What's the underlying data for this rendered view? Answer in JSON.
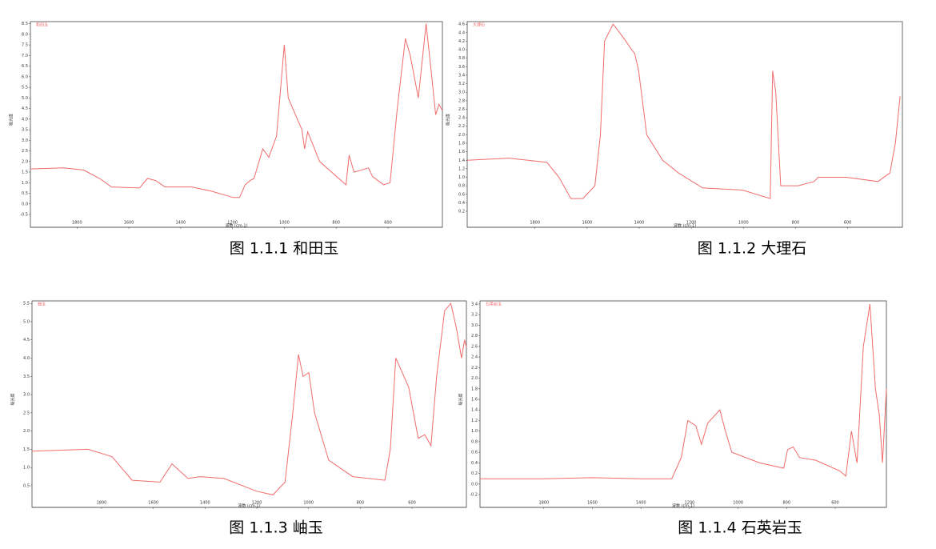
{
  "chart_data": [
    {
      "type": "line",
      "caption": "图 1.1.1  和田玉",
      "label": "和田玉",
      "xlabel": "波数 (cm-1)",
      "ylabel": "吸光度",
      "xlim": [
        1980,
        390
      ],
      "xticks": [
        1800,
        1600,
        1400,
        1200,
        1000,
        800,
        600
      ],
      "ylim": [
        -0.65,
        8.6
      ],
      "yticks": [
        -0.5,
        {
          "value": 0,
          "label": "0.0"
        },
        0.5,
        {
          "value": 1,
          "label": "1.0"
        },
        1.5,
        {
          "value": 2,
          "label": "2.0"
        },
        2.5,
        {
          "value": 3,
          "label": "3.0"
        },
        3.5,
        {
          "value": 4,
          "label": "4.0"
        },
        4.5,
        {
          "value": 5,
          "label": "5.0"
        },
        5.5,
        {
          "value": 6,
          "label": "6.0"
        },
        6.5,
        {
          "value": 7,
          "label": "7.0"
        },
        7.5,
        {
          "value": 8,
          "label": "8.0"
        },
        8.5
      ],
      "series": [
        {
          "color": "#f26b6b",
          "x": [
            1980,
            1853,
            1775,
            1713,
            1667,
            1559,
            1528,
            1497,
            1460,
            1358,
            1281,
            1197,
            1173,
            1151,
            1132,
            1117,
            1083,
            1060,
            1030,
            1000,
            985,
            932,
            922,
            910,
            864,
            762,
            750,
            731,
            675,
            660,
            617,
            592,
            564,
            533,
            514,
            483,
            453,
            431,
            416,
            403,
            390
          ],
          "values": [
            1.65,
            1.7,
            1.6,
            1.2,
            0.8,
            0.75,
            1.2,
            1.1,
            0.8,
            0.8,
            0.6,
            0.3,
            0.3,
            0.9,
            1.1,
            1.2,
            2.6,
            2.2,
            3.2,
            7.5,
            5.0,
            3.5,
            2.6,
            3.4,
            2.0,
            0.9,
            2.3,
            1.5,
            1.7,
            1.3,
            0.9,
            1.0,
            4.5,
            7.8,
            7.0,
            5.0,
            8.5,
            6.0,
            4.2,
            4.7,
            4.4
          ]
        }
      ]
    },
    {
      "type": "line",
      "caption": "图 1.1.2 大理石",
      "label": "大理石",
      "xlabel": "波数 (cm-1)",
      "ylabel": "吸光度",
      "xlim": [
        2060,
        390
      ],
      "xticks": [
        1800,
        1600,
        1400,
        1200,
        1000,
        800,
        600
      ],
      "ylim": [
        0.05,
        4.66
      ],
      "yticks": [
        0.2,
        0.4,
        0.6,
        0.8,
        {
          "value": 1,
          "label": "1.0"
        },
        1.2,
        1.4,
        1.6,
        1.8,
        {
          "value": 2,
          "label": "2.0"
        },
        2.2,
        2.4,
        2.6,
        2.8,
        {
          "value": 3,
          "label": "3.0"
        },
        3.2,
        3.4,
        3.6,
        3.8,
        {
          "value": 4,
          "label": "4.0"
        },
        4.2,
        4.4,
        4.6
      ],
      "series": [
        {
          "color": "#f26b6b",
          "x": [
            2060,
            1900,
            1754,
            1708,
            1662,
            1616,
            1570,
            1549,
            1533,
            1500,
            1463,
            1417,
            1402,
            1371,
            1310,
            1249,
            1157,
            1004,
            897,
            888,
            876,
            857,
            790,
            729,
            713,
            606,
            484,
            438,
            417,
            399
          ],
          "values": [
            1.4,
            1.45,
            1.35,
            1.0,
            0.5,
            0.5,
            0.8,
            2.0,
            4.2,
            4.6,
            4.3,
            3.9,
            3.5,
            2.0,
            1.4,
            1.1,
            0.75,
            0.7,
            0.5,
            3.5,
            3.0,
            0.8,
            0.8,
            0.9,
            1.0,
            1.0,
            0.9,
            1.1,
            1.8,
            2.9
          ]
        }
      ]
    },
    {
      "type": "line",
      "caption": "图 1.1.3  岫玉",
      "label": "岫玉",
      "xlabel": "波数 (cm-1)",
      "ylabel": "吸光度",
      "xlim": [
        2069,
        390
      ],
      "xticks": [
        1800,
        1600,
        1400,
        1200,
        1000,
        800,
        600
      ],
      "ylim": [
        0.17,
        5.57
      ],
      "yticks": [
        0.5,
        {
          "value": 1,
          "label": "1.0"
        },
        1.5,
        {
          "value": 2,
          "label": "2.0"
        },
        2.5,
        {
          "value": 3,
          "label": "3.0"
        },
        3.5,
        {
          "value": 4,
          "label": "4.0"
        },
        4.5,
        {
          "value": 5,
          "label": "5.0"
        },
        5.5
      ],
      "series": [
        {
          "color": "#f26b6b",
          "x": [
            2069,
            1853,
            1760,
            1682,
            1574,
            1528,
            1466,
            1419,
            1327,
            1200,
            1138,
            1091,
            1061,
            1039,
            1021,
            999,
            977,
            922,
            829,
            705,
            684,
            663,
            644,
            613,
            576,
            551,
            527,
            505,
            474,
            450,
            428,
            409,
            397,
            390
          ],
          "values": [
            1.45,
            1.5,
            1.3,
            0.65,
            0.6,
            1.1,
            0.7,
            0.75,
            0.7,
            0.35,
            0.25,
            0.6,
            2.5,
            4.1,
            3.5,
            3.6,
            2.5,
            1.2,
            0.75,
            0.65,
            1.5,
            4.0,
            3.7,
            3.2,
            1.8,
            1.9,
            1.6,
            3.5,
            5.3,
            5.5,
            4.8,
            4.0,
            4.5,
            4.3
          ]
        }
      ]
    },
    {
      "type": "line",
      "caption": "图 1.1.4 石英岩玉",
      "label": "石英岩玉",
      "xlabel": "波数 (cm-1)",
      "ylabel": "吸光度",
      "xlim": [
        2063,
        389
      ],
      "xticks": [
        1800,
        1600,
        1400,
        1200,
        1000,
        800,
        600
      ],
      "ylim": [
        -0.26,
        3.46
      ],
      "yticks": [
        -0.2,
        {
          "value": 0,
          "label": "0.0"
        },
        0.2,
        0.4,
        0.6,
        0.8,
        {
          "value": 1,
          "label": "1.0"
        },
        1.2,
        1.4,
        1.6,
        1.8,
        {
          "value": 2,
          "label": "2.0"
        },
        2.2,
        2.4,
        2.6,
        2.8,
        {
          "value": 3,
          "label": "3.0"
        },
        3.2,
        3.4
      ],
      "series": [
        {
          "color": "#f26b6b",
          "x": [
            2063,
            1800,
            1600,
            1400,
            1273,
            1234,
            1207,
            1174,
            1151,
            1125,
            1075,
            1052,
            1026,
            911,
            812,
            796,
            773,
            747,
            681,
            582,
            556,
            533,
            510,
            484,
            457,
            434,
            418,
            405,
            389
          ],
          "values": [
            0.1,
            0.1,
            0.12,
            0.1,
            0.1,
            0.5,
            1.2,
            1.1,
            0.75,
            1.15,
            1.4,
            1.0,
            0.6,
            0.4,
            0.3,
            0.65,
            0.7,
            0.5,
            0.45,
            0.25,
            0.15,
            1.0,
            0.4,
            2.6,
            3.4,
            1.8,
            1.3,
            0.4,
            1.8
          ]
        }
      ]
    }
  ]
}
